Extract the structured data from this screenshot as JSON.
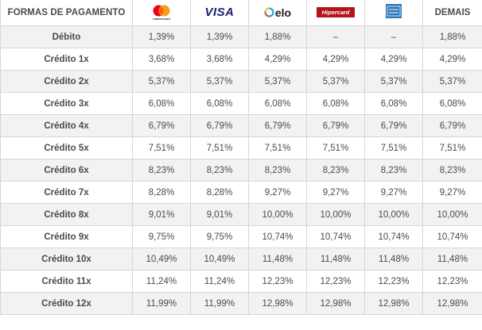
{
  "header": {
    "label": "FORMAS DE PAGAMENTO",
    "mastercard_wordmark": "mastercard",
    "visa": "VISA",
    "elo": "elo",
    "hipercard": "Hipercard",
    "demais": "DEMAIS",
    "colors": {
      "mastercard_red": "#eb001b",
      "mastercard_yellow": "#f79e1b",
      "visa_blue": "#1a1f71",
      "elo_blue": "#00a4e0",
      "hipercard_red": "#b3131b",
      "amex_blue": "#2e77bb"
    },
    "icons": [
      "mastercard-logo-icon",
      "visa-logo-icon",
      "elo-logo-icon",
      "hipercard-logo-icon",
      "amex-logo-icon"
    ]
  },
  "rows": [
    {
      "label": "Débito",
      "mastercard": "1,39%",
      "visa": "1,39%",
      "elo": "1,88%",
      "hipercard": "–",
      "amex": "–",
      "demais": "1,88%"
    },
    {
      "label": "Crédito 1x",
      "mastercard": "3,68%",
      "visa": "3,68%",
      "elo": "4,29%",
      "hipercard": "4,29%",
      "amex": "4,29%",
      "demais": "4,29%"
    },
    {
      "label": "Crédito 2x",
      "mastercard": "5,37%",
      "visa": "5,37%",
      "elo": "5,37%",
      "hipercard": "5,37%",
      "amex": "5,37%",
      "demais": "5,37%"
    },
    {
      "label": "Crédito 3x",
      "mastercard": "6,08%",
      "visa": "6,08%",
      "elo": "6,08%",
      "hipercard": "6,08%",
      "amex": "6,08%",
      "demais": "6,08%"
    },
    {
      "label": "Crédito 4x",
      "mastercard": "6,79%",
      "visa": "6,79%",
      "elo": "6,79%",
      "hipercard": "6,79%",
      "amex": "6,79%",
      "demais": "6,79%"
    },
    {
      "label": "Crédito 5x",
      "mastercard": "7,51%",
      "visa": "7,51%",
      "elo": "7,51%",
      "hipercard": "7,51%",
      "amex": "7,51%",
      "demais": "7,51%"
    },
    {
      "label": "Crédito 6x",
      "mastercard": "8,23%",
      "visa": "8,23%",
      "elo": "8,23%",
      "hipercard": "8,23%",
      "amex": "8,23%",
      "demais": "8,23%"
    },
    {
      "label": "Crédito 7x",
      "mastercard": "8,28%",
      "visa": "8,28%",
      "elo": "9,27%",
      "hipercard": "9,27%",
      "amex": "9,27%",
      "demais": "9,27%"
    },
    {
      "label": "Crédito 8x",
      "mastercard": "9,01%",
      "visa": "9,01%",
      "elo": "10,00%",
      "hipercard": "10,00%",
      "amex": "10,00%",
      "demais": "10,00%"
    },
    {
      "label": "Crédito 9x",
      "mastercard": "9,75%",
      "visa": "9,75%",
      "elo": "10,74%",
      "hipercard": "10,74%",
      "amex": "10,74%",
      "demais": "10,74%"
    },
    {
      "label": "Crédito 10x",
      "mastercard": "10,49%",
      "visa": "10,49%",
      "elo": "11,48%",
      "hipercard": "11,48%",
      "amex": "11,48%",
      "demais": "11,48%"
    },
    {
      "label": "Crédito 11x",
      "mastercard": "11,24%",
      "visa": "11,24%",
      "elo": "12,23%",
      "hipercard": "12,23%",
      "amex": "12,23%",
      "demais": "12,23%"
    },
    {
      "label": "Crédito 12x",
      "mastercard": "11,99%",
      "visa": "11,99%",
      "elo": "12,98%",
      "hipercard": "12,98%",
      "amex": "12,98%",
      "demais": "12,98%"
    }
  ]
}
